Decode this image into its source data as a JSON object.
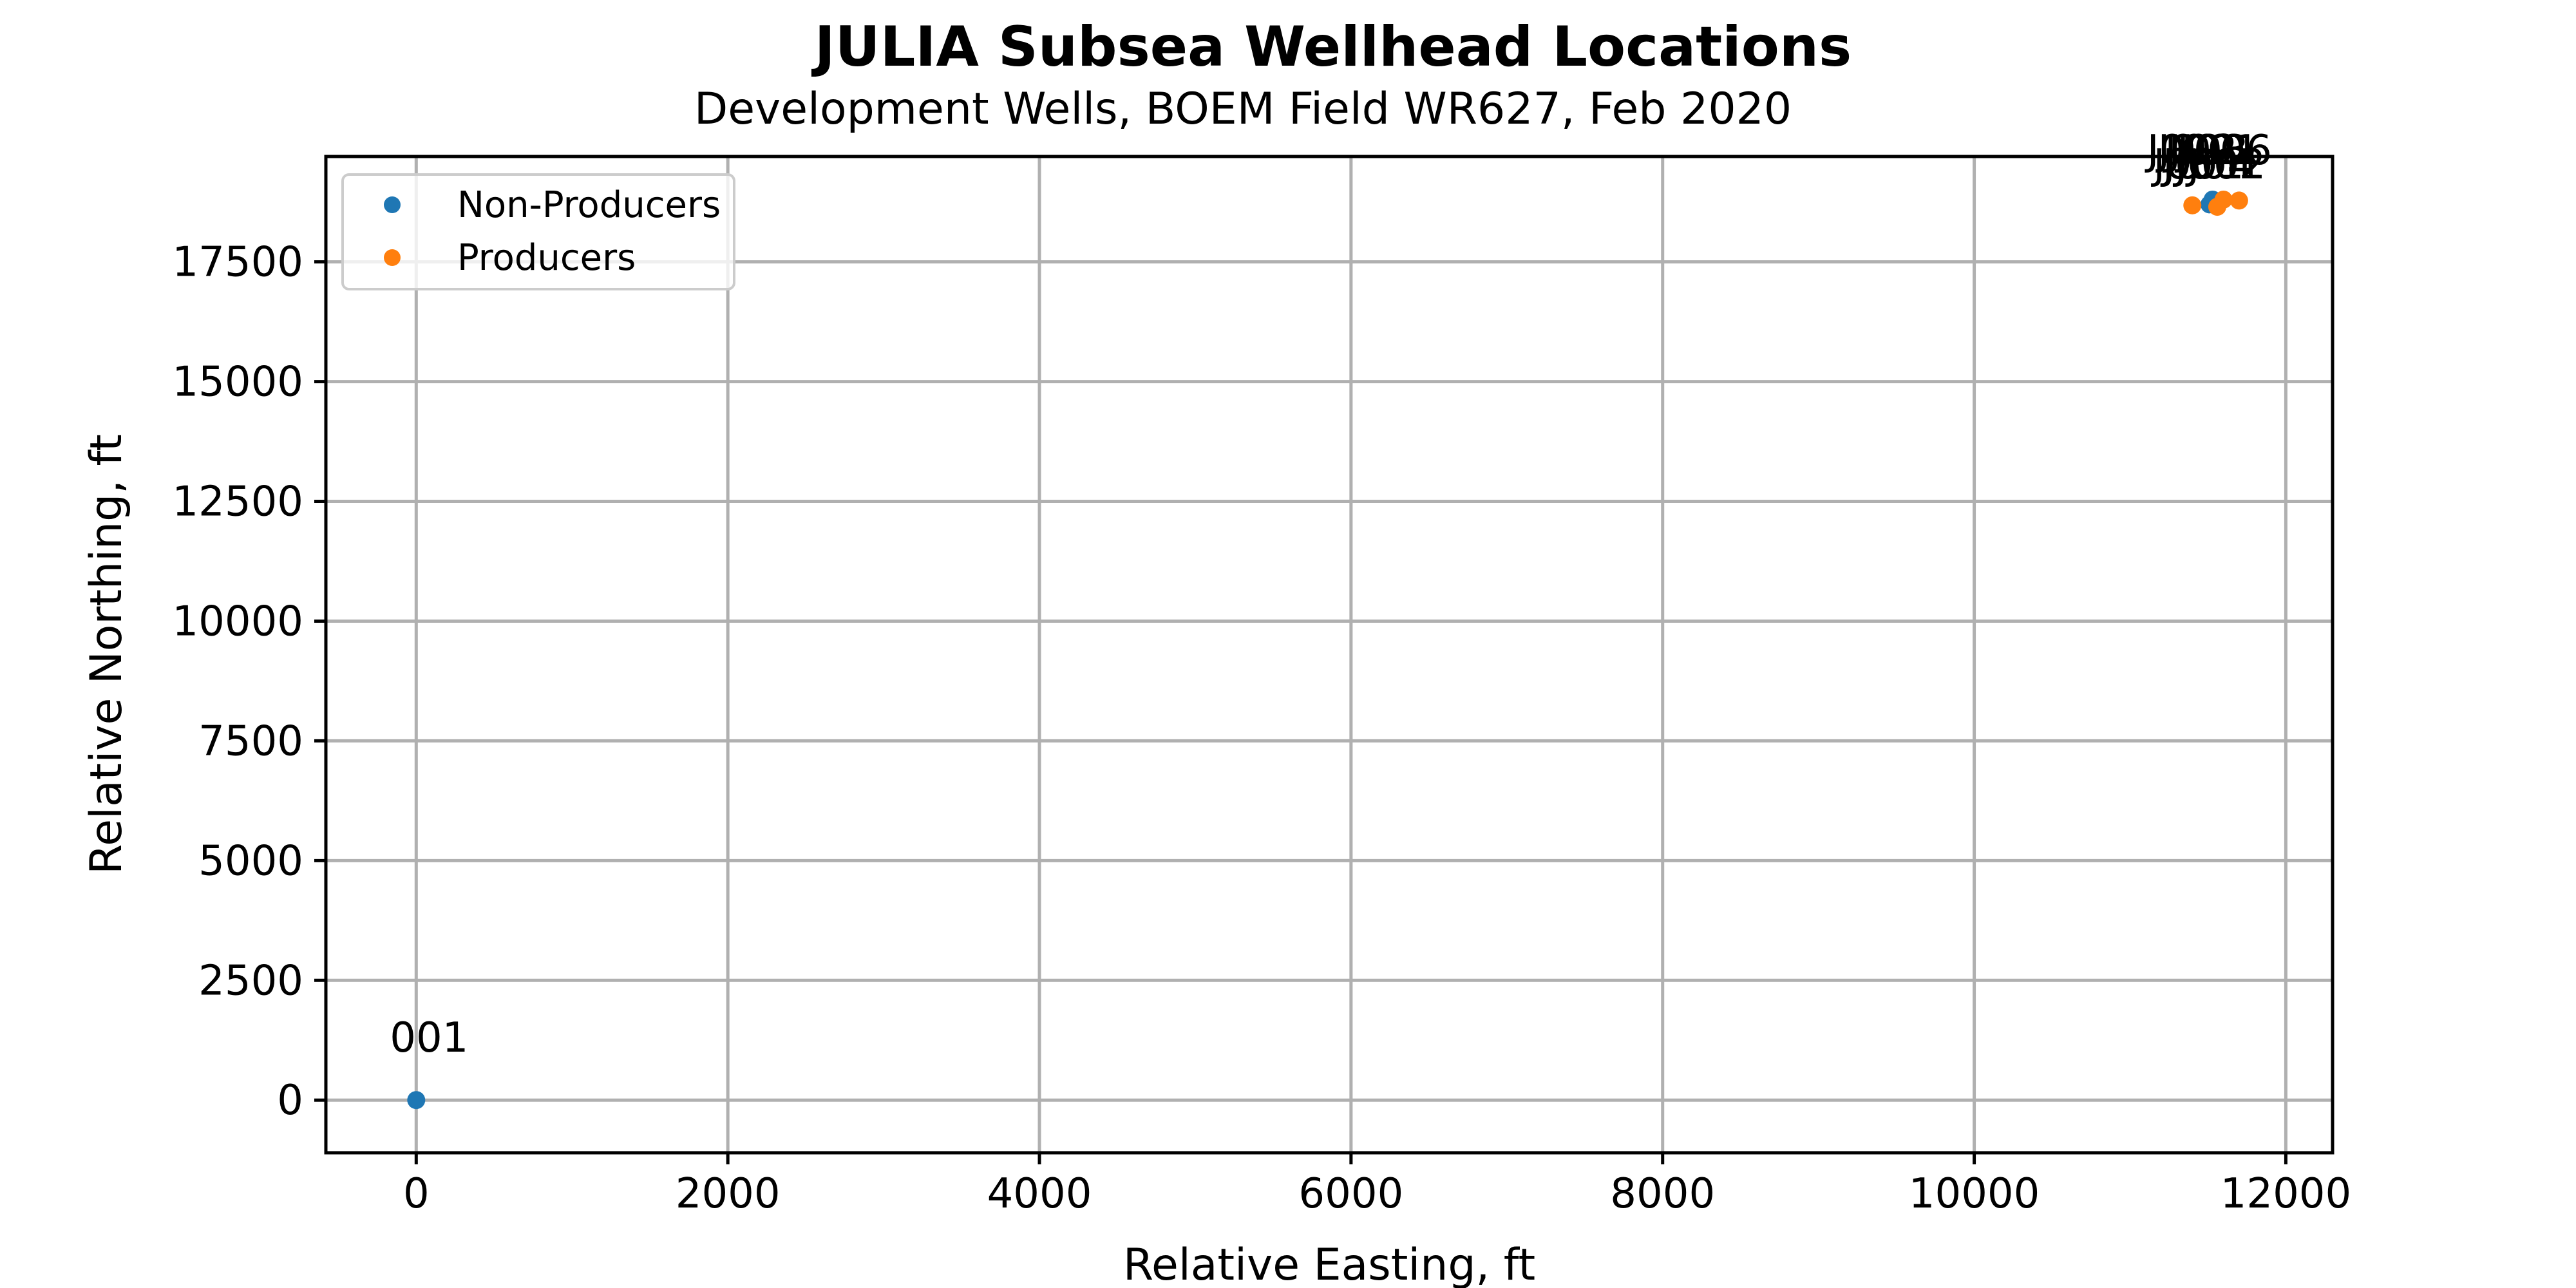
{
  "chart_data": {
    "type": "scatter",
    "title": "JULIA Subsea Wellhead Locations",
    "subtitle": "Development Wells, BOEM Field WR627, Feb 2020",
    "xlabel": "Relative Easting, ft",
    "ylabel": "Relative Northing, ft",
    "xlim": [
      -580,
      12300
    ],
    "ylim": [
      -1100,
      19700
    ],
    "xticks": [
      0,
      2000,
      4000,
      6000,
      8000,
      10000,
      12000
    ],
    "yticks": [
      0,
      2500,
      5000,
      7500,
      10000,
      12500,
      15000,
      17500
    ],
    "grid": true,
    "legend": "top-left",
    "series": [
      {
        "name": "Non-Producers",
        "color": "#1f77b4",
        "points": [
          {
            "label": "001",
            "x": 0,
            "y": 0
          },
          {
            "label": "",
            "x": 11530,
            "y": 18800
          },
          {
            "label": "",
            "x": 11510,
            "y": 18700
          }
        ]
      },
      {
        "name": "Producers",
        "color": "#ff7f0e",
        "points": [
          {
            "label": "",
            "x": 11400,
            "y": 18680
          },
          {
            "label": "",
            "x": 11560,
            "y": 18650
          },
          {
            "label": "",
            "x": 11600,
            "y": 18800
          },
          {
            "label": "",
            "x": 11700,
            "y": 18780
          }
        ]
      }
    ],
    "cluster_labels": [
      {
        "text": "JJ",
        "x": 11300
      },
      {
        "text": "JJJ",
        "x": 11330
      },
      {
        "text": "J002",
        "x": 11400
      },
      {
        "text": "J001",
        "x": 11440
      },
      {
        "text": "J003",
        "x": 11470
      },
      {
        "text": "J004",
        "x": 11500
      },
      {
        "text": "J001",
        "x": 11540
      },
      {
        "text": "J002",
        "x": 11580
      },
      {
        "text": "J006",
        "x": 11620
      },
      {
        "text": "1",
        "x": 11770
      }
    ]
  }
}
